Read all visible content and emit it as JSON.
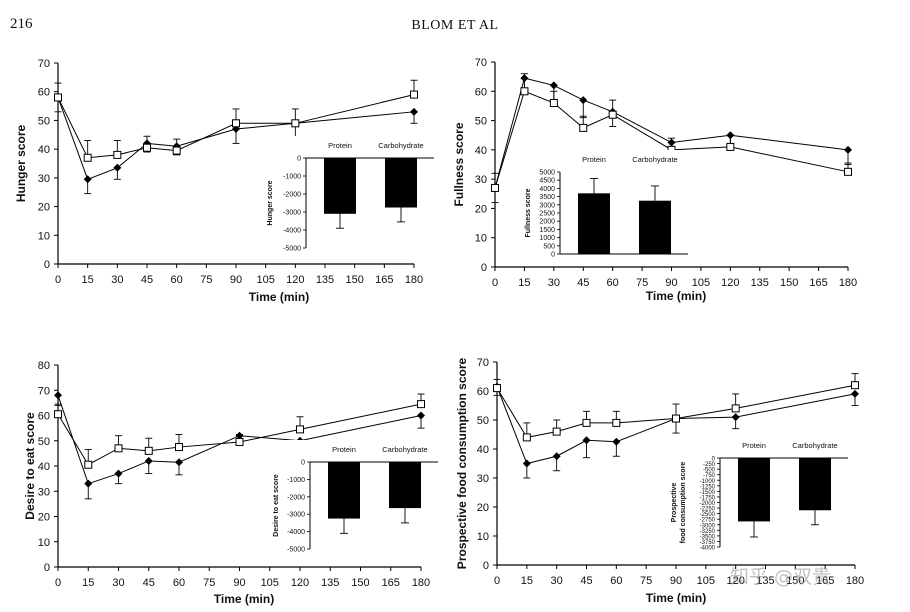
{
  "header": {
    "page_number": "216",
    "running_head": "BLOM ET AL"
  },
  "watermark": "知乎 @双贵",
  "chart_data": [
    {
      "id": "hunger",
      "type": "line",
      "xlabel": "Time (min)",
      "ylabel": "Hunger score",
      "ylim": [
        0,
        70
      ],
      "yticks": [
        0,
        10,
        20,
        30,
        40,
        50,
        60,
        70
      ],
      "xticks": [
        0,
        15,
        30,
        45,
        60,
        75,
        90,
        105,
        120,
        135,
        150,
        165,
        180
      ],
      "series": [
        {
          "marker": "diamond-filled",
          "x": [
            0,
            15,
            30,
            45,
            60,
            90,
            120,
            180
          ],
          "y": [
            58,
            29.5,
            33.5,
            42,
            41,
            47,
            49,
            53
          ],
          "err": [
            5,
            5,
            4,
            3,
            3,
            5,
            5,
            4
          ]
        },
        {
          "marker": "square-open",
          "x": [
            0,
            15,
            30,
            45,
            60,
            90,
            120,
            180
          ],
          "y": [
            58,
            37,
            38,
            40.5,
            39.5,
            49,
            49,
            59
          ],
          "err": [
            5,
            6,
            5,
            4,
            4,
            5,
            5,
            5
          ]
        }
      ],
      "inset": {
        "type": "bar",
        "categories": [
          "Protein",
          "Carbohydrate"
        ],
        "values": [
          -3100,
          -2750
        ],
        "errors": [
          800,
          800
        ],
        "ylabel": "Hunger score",
        "ylim": [
          -5000,
          0
        ],
        "yticks": [
          0,
          -1000,
          -2000,
          -3000,
          -4000,
          -5000
        ],
        "labels_position": "top"
      }
    },
    {
      "id": "fullness",
      "type": "line",
      "xlabel": "Time (min)",
      "ylabel": "Fullness score",
      "ylim": [
        0,
        70
      ],
      "yticks": [
        0,
        10,
        20,
        30,
        40,
        50,
        60,
        70
      ],
      "xticks": [
        0,
        15,
        30,
        45,
        60,
        75,
        90,
        105,
        120,
        135,
        150,
        165,
        180
      ],
      "series": [
        {
          "marker": "diamond-filled",
          "x": [
            0,
            15,
            30,
            45,
            60,
            90,
            120,
            180
          ],
          "y": [
            27,
            64.5,
            62,
            57,
            53,
            42.5,
            45,
            40
          ],
          "err": [
            5,
            5,
            5,
            6,
            5,
            5,
            5,
            5
          ]
        },
        {
          "marker": "square-open",
          "x": [
            0,
            15,
            30,
            45,
            60,
            90,
            120,
            180
          ],
          "y": [
            27,
            60,
            56,
            47.5,
            52,
            40,
            41,
            32.5
          ],
          "err": [
            5,
            6,
            4,
            4,
            5,
            4,
            4,
            3
          ]
        }
      ],
      "inset": {
        "type": "bar",
        "categories": [
          "Protein",
          "Carbohydrate"
        ],
        "values": [
          3700,
          3250
        ],
        "errors": [
          900,
          900
        ],
        "ylabel": "Fullness score",
        "ylim": [
          0,
          5000
        ],
        "yticks": [
          0,
          500,
          1000,
          1500,
          2000,
          2500,
          3000,
          3500,
          4000,
          4500,
          5000
        ],
        "labels_position": "top"
      }
    },
    {
      "id": "desire",
      "type": "line",
      "xlabel": "Time (min)",
      "ylabel": "Desire to eat score",
      "ylim": [
        0,
        80
      ],
      "yticks": [
        0,
        10,
        20,
        30,
        40,
        50,
        60,
        70,
        80
      ],
      "xticks": [
        0,
        15,
        30,
        45,
        60,
        75,
        90,
        105,
        120,
        135,
        150,
        165,
        180
      ],
      "series": [
        {
          "marker": "diamond-filled",
          "x": [
            0,
            15,
            30,
            45,
            60,
            90,
            120,
            180
          ],
          "y": [
            68,
            33,
            37,
            42,
            41.5,
            52,
            50,
            60
          ],
          "err": [
            4,
            6,
            4,
            5,
            5,
            3,
            5,
            5
          ]
        },
        {
          "marker": "square-open",
          "x": [
            0,
            15,
            30,
            45,
            60,
            90,
            120,
            180
          ],
          "y": [
            60.5,
            40.5,
            47,
            46,
            47.5,
            49.5,
            54.5,
            64.5
          ],
          "err": [
            4,
            6,
            5,
            5,
            5,
            3,
            5,
            4
          ]
        }
      ],
      "inset": {
        "type": "bar",
        "categories": [
          "Protein",
          "Carbohydrate"
        ],
        "values": [
          -3250,
          -2650
        ],
        "errors": [
          850,
          850
        ],
        "ylabel": "Desire to eat score",
        "ylim": [
          -5000,
          0
        ],
        "yticks": [
          0,
          -1000,
          -2000,
          -3000,
          -4000,
          -5000
        ],
        "labels_position": "top"
      }
    },
    {
      "id": "prospective",
      "type": "line",
      "xlabel": "Time (min)",
      "ylabel": "Prospective food consumption score",
      "ylim": [
        0,
        70
      ],
      "yticks": [
        0,
        10,
        20,
        30,
        40,
        50,
        60,
        70
      ],
      "xticks": [
        0,
        15,
        30,
        45,
        60,
        75,
        90,
        105,
        120,
        135,
        150,
        165,
        180
      ],
      "series": [
        {
          "marker": "diamond-filled",
          "x": [
            0,
            15,
            30,
            45,
            60,
            90,
            120,
            180
          ],
          "y": [
            61.5,
            35,
            37.5,
            43,
            42.5,
            50.5,
            51,
            59
          ],
          "err": [
            3,
            5,
            5,
            6,
            5,
            5,
            4,
            4
          ]
        },
        {
          "marker": "square-open",
          "x": [
            0,
            15,
            30,
            45,
            60,
            90,
            120,
            180
          ],
          "y": [
            61,
            44,
            46,
            49,
            49,
            50.5,
            54,
            62
          ],
          "err": [
            3,
            5,
            4,
            4,
            4,
            5,
            5,
            4
          ]
        }
      ],
      "inset": {
        "type": "bar",
        "categories": [
          "Protein",
          "Carbohydrate"
        ],
        "values": [
          -2850,
          -2350
        ],
        "errors": [
          700,
          650
        ],
        "ylabel": "Prospective food consumption score",
        "ylim": [
          -4000,
          0
        ],
        "yticks": [
          0,
          -250,
          -500,
          -750,
          -1000,
          -1250,
          -1500,
          -1750,
          -2000,
          -2250,
          -2500,
          -2750,
          -3000,
          -3250,
          -3500,
          -3750,
          -4000
        ],
        "labels_position": "top"
      }
    }
  ]
}
